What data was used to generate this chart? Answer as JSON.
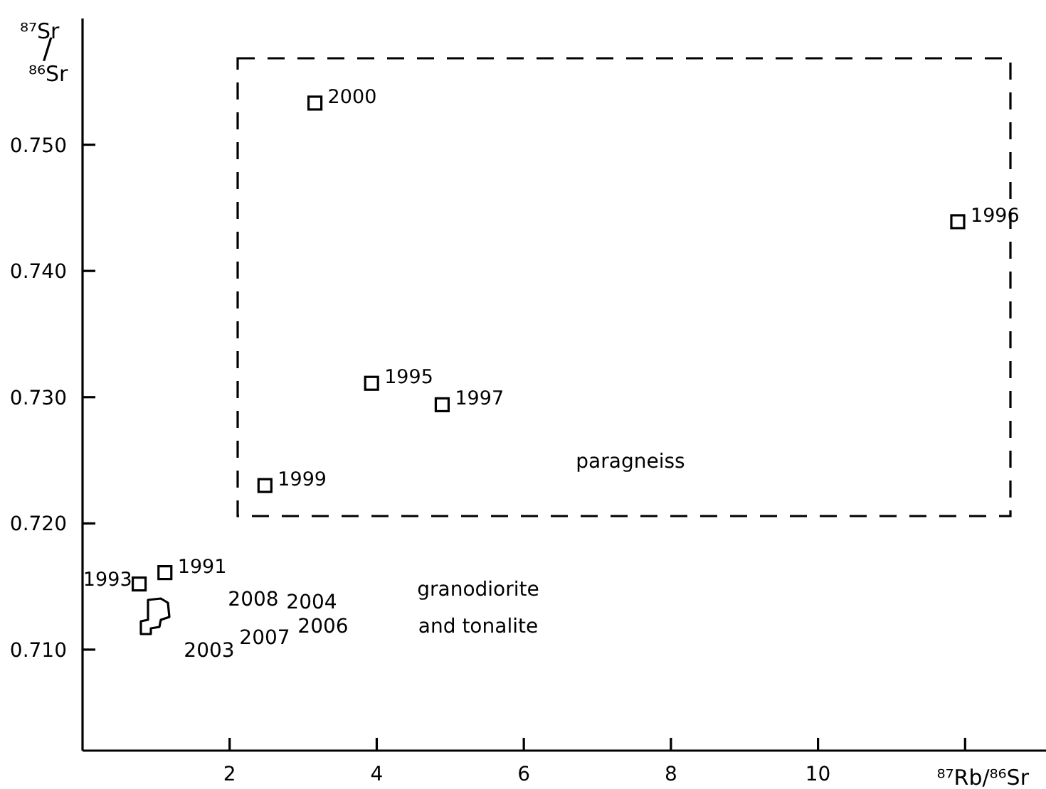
{
  "chart_data": {
    "type": "scatter",
    "xlabel": "⁸⁷Rb/⁸⁶Sr",
    "ylabel": "⁸⁷Sr/⁸⁶Sr",
    "xlim": [
      0,
      13.1
    ],
    "ylim": [
      0.702,
      0.76
    ],
    "xticks": [
      2,
      4,
      6,
      8,
      10,
      {
        "value": 12,
        "label": null
      }
    ],
    "yticks": [
      {
        "value": 0.71,
        "label": "0.710"
      },
      {
        "value": 0.72,
        "label": "0.720"
      },
      {
        "value": 0.73,
        "label": "0.730"
      },
      {
        "value": 0.74,
        "label": "0.740"
      },
      {
        "value": 0.75,
        "label": "0.750"
      }
    ],
    "grid": false,
    "legend": false,
    "marker": "square",
    "series": [
      {
        "color": "#000000",
        "x": [
          3.16,
          3.93,
          4.89,
          2.48,
          11.9,
          0.77,
          1.12
        ],
        "values": [
          0.7533,
          0.7311,
          0.7294,
          0.723,
          0.7439,
          0.7152,
          0.7161
        ]
      }
    ],
    "annotations": [
      {
        "text": "2000",
        "x": 3.16,
        "y": 0.7533
      },
      {
        "text": "1995",
        "x": 3.93,
        "y": 0.7311
      },
      {
        "text": "1997",
        "x": 4.89,
        "y": 0.7294
      },
      {
        "text": "1999",
        "x": 2.48,
        "y": 0.723
      },
      {
        "text": "1996",
        "x": 11.9,
        "y": 0.7439
      },
      {
        "text": "1993",
        "x": 0.77,
        "y": 0.7152
      },
      {
        "text": "1991",
        "x": 1.12,
        "y": 0.7161
      },
      "2008",
      "2004",
      "2006",
      "2007",
      "2003",
      "granodiorite\nand tonalite",
      "paragneiss"
    ]
  }
}
